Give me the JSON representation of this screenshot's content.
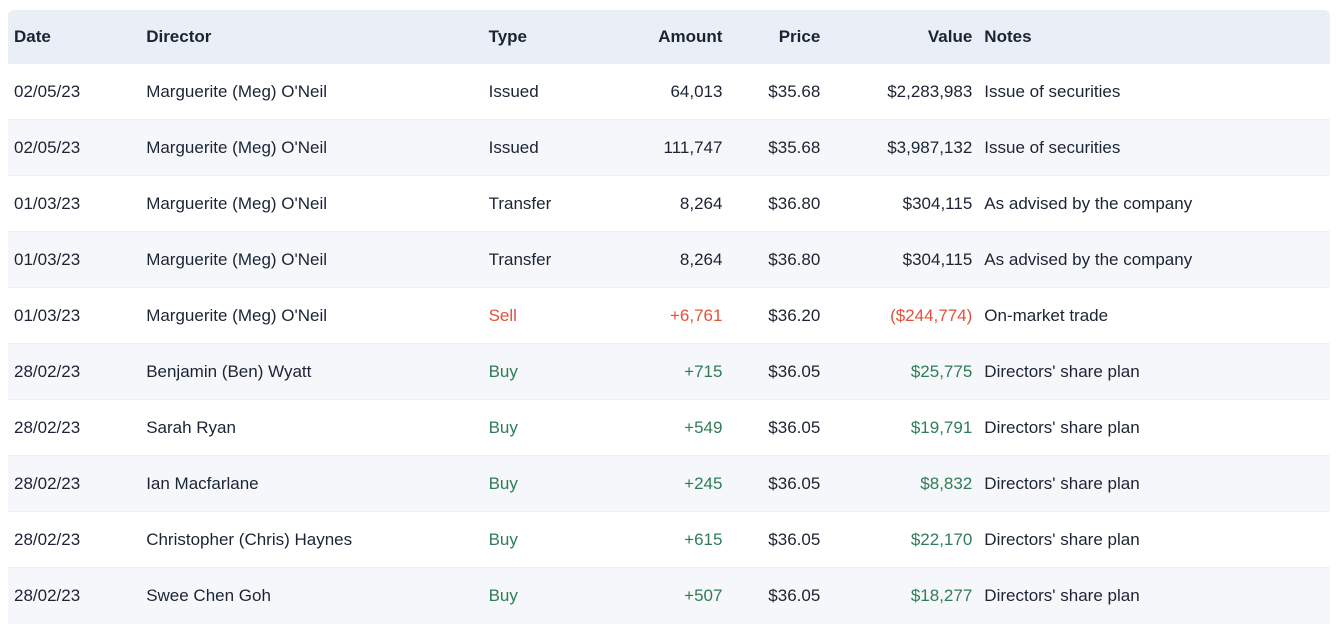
{
  "colors": {
    "text": "#1b2434",
    "header_bg": "#e9eef7",
    "stripe_bg": "#f5f7fa",
    "sell": "#e0523c",
    "buy": "#2f7c55"
  },
  "table": {
    "columns": [
      {
        "key": "date",
        "label": "Date",
        "align": "left"
      },
      {
        "key": "director",
        "label": "Director",
        "align": "left"
      },
      {
        "key": "type",
        "label": "Type",
        "align": "left"
      },
      {
        "key": "amount",
        "label": "Amount",
        "align": "right"
      },
      {
        "key": "price",
        "label": "Price",
        "align": "right"
      },
      {
        "key": "value",
        "label": "Value",
        "align": "right"
      },
      {
        "key": "notes",
        "label": "Notes",
        "align": "left"
      }
    ],
    "rows": [
      {
        "date": "02/05/23",
        "director": "Marguerite (Meg) O'Neil",
        "type": "Issued",
        "amount": "64,013",
        "price": "$35.68",
        "value": "$2,283,983",
        "notes": "Issue of securities",
        "sentiment": "neutral"
      },
      {
        "date": "02/05/23",
        "director": "Marguerite (Meg) O'Neil",
        "type": "Issued",
        "amount": "111,747",
        "price": "$35.68",
        "value": "$3,987,132",
        "notes": "Issue of securities",
        "sentiment": "neutral"
      },
      {
        "date": "01/03/23",
        "director": "Marguerite (Meg) O'Neil",
        "type": "Transfer",
        "amount": "8,264",
        "price": "$36.80",
        "value": "$304,115",
        "notes": "As advised by the company",
        "sentiment": "neutral"
      },
      {
        "date": "01/03/23",
        "director": "Marguerite (Meg) O'Neil",
        "type": "Transfer",
        "amount": "8,264",
        "price": "$36.80",
        "value": "$304,115",
        "notes": "As advised by the company",
        "sentiment": "neutral"
      },
      {
        "date": "01/03/23",
        "director": "Marguerite (Meg) O'Neil",
        "type": "Sell",
        "amount": "+6,761",
        "price": "$36.20",
        "value": "($244,774)",
        "notes": "On-market trade",
        "sentiment": "sell"
      },
      {
        "date": "28/02/23",
        "director": "Benjamin (Ben) Wyatt",
        "type": "Buy",
        "amount": "+715",
        "price": "$36.05",
        "value": "$25,775",
        "notes": "Directors' share plan",
        "sentiment": "buy"
      },
      {
        "date": "28/02/23",
        "director": "Sarah Ryan",
        "type": "Buy",
        "amount": "+549",
        "price": "$36.05",
        "value": "$19,791",
        "notes": "Directors' share plan",
        "sentiment": "buy"
      },
      {
        "date": "28/02/23",
        "director": "Ian Macfarlane",
        "type": "Buy",
        "amount": "+245",
        "price": "$36.05",
        "value": "$8,832",
        "notes": "Directors' share plan",
        "sentiment": "buy"
      },
      {
        "date": "28/02/23",
        "director": "Christopher (Chris) Haynes",
        "type": "Buy",
        "amount": "+615",
        "price": "$36.05",
        "value": "$22,170",
        "notes": "Directors' share plan",
        "sentiment": "buy"
      },
      {
        "date": "28/02/23",
        "director": "Swee Chen Goh",
        "type": "Buy",
        "amount": "+507",
        "price": "$36.05",
        "value": "$18,277",
        "notes": "Directors' share plan",
        "sentiment": "buy"
      }
    ]
  }
}
